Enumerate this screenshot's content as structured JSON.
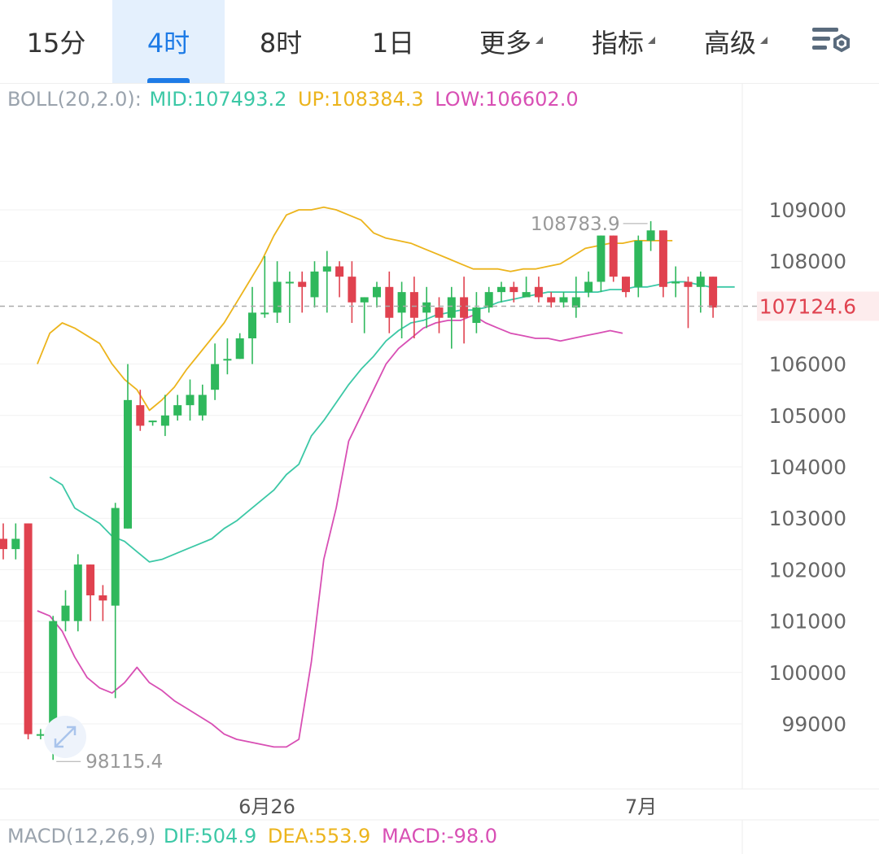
{
  "tabs": [
    {
      "label": "15分",
      "active": false,
      "dropdown": false
    },
    {
      "label": "4时",
      "active": true,
      "dropdown": false
    },
    {
      "label": "8时",
      "active": false,
      "dropdown": false
    },
    {
      "label": "1日",
      "active": false,
      "dropdown": false
    },
    {
      "label": "更多",
      "active": false,
      "dropdown": true
    },
    {
      "label": "指标",
      "active": false,
      "dropdown": true
    },
    {
      "label": "高级",
      "active": false,
      "dropdown": true
    }
  ],
  "settings_icon": "chart-settings-icon",
  "boll_legend": {
    "name": "BOLL(20,2.0):",
    "mid": "MID:107493.2",
    "up": "UP:108384.3",
    "low": "LOW:106602.0"
  },
  "macd_legend": {
    "name": "MACD(12,26,9)",
    "dif": "DIF:504.9",
    "dea": "DEA:553.9",
    "macd": "MACD:-98.0"
  },
  "colors": {
    "up": "#2fb85c",
    "down": "#e0424f",
    "mid": "#3cc8a6",
    "upper": "#ecb41c",
    "lower": "#d84fb4",
    "accent": "#1e7be6"
  },
  "chart_data": {
    "type": "candlestick",
    "y_ticks": [
      109000,
      108000,
      106000,
      105000,
      104000,
      103000,
      102000,
      101000,
      100000,
      99000
    ],
    "y_tick_labels": [
      "109000",
      "108000",
      "106000",
      "105000",
      "104000",
      "103000",
      "102000",
      "101000",
      "100000",
      "99000"
    ],
    "x_labels": [
      {
        "label": "6月26",
        "index": 20
      },
      {
        "label": "7月",
        "index": 52
      }
    ],
    "last_price": 107124.6,
    "last_price_label": "107124.6",
    "max_label": "108783.9",
    "min_label": "98115.4",
    "candles": [
      [
        102600,
        102400,
        102900,
        102200
      ],
      [
        102400,
        102600,
        102900,
        102200
      ],
      [
        102900,
        98800,
        102900,
        98700
      ],
      [
        98800,
        98800,
        98900,
        98700
      ],
      [
        98900,
        101000,
        101100,
        98300
      ],
      [
        101000,
        101300,
        101600,
        100800
      ],
      [
        101000,
        102100,
        102300,
        100800
      ],
      [
        102100,
        101500,
        102100,
        101000
      ],
      [
        101500,
        101400,
        101700,
        101000
      ],
      [
        101300,
        103200,
        103300,
        99500
      ],
      [
        102800,
        105300,
        106000,
        102800
      ],
      [
        105200,
        104800,
        105500,
        104700
      ],
      [
        104900,
        104900,
        104900,
        104800
      ],
      [
        104800,
        105000,
        105400,
        104600
      ],
      [
        105000,
        105200,
        105400,
        104900
      ],
      [
        105200,
        105400,
        105700,
        104900
      ],
      [
        105000,
        105400,
        105600,
        104900
      ],
      [
        105500,
        106000,
        106400,
        105300
      ],
      [
        106100,
        106100,
        106500,
        105800
      ],
      [
        106100,
        106500,
        106600,
        106100
      ],
      [
        106500,
        107000,
        107500,
        106000
      ],
      [
        107000,
        107000,
        108100,
        106900
      ],
      [
        107000,
        107600,
        108000,
        106800
      ],
      [
        107600,
        107600,
        107800,
        106800
      ],
      [
        107600,
        107500,
        107800,
        107000
      ],
      [
        107300,
        107800,
        108000,
        107100
      ],
      [
        107800,
        107900,
        108200,
        107000
      ],
      [
        107900,
        107700,
        108000,
        107300
      ],
      [
        107700,
        107200,
        108000,
        106800
      ],
      [
        107200,
        107300,
        107300,
        106600
      ],
      [
        107300,
        107500,
        107600,
        107100
      ],
      [
        107500,
        106900,
        107800,
        106600
      ],
      [
        107000,
        107400,
        107600,
        106500
      ],
      [
        107400,
        106900,
        107700,
        106500
      ],
      [
        107000,
        107200,
        107500,
        106700
      ],
      [
        107100,
        106900,
        107300,
        106600
      ],
      [
        106900,
        107300,
        107500,
        106300
      ],
      [
        107300,
        106900,
        107700,
        106400
      ],
      [
        106800,
        107100,
        107400,
        106600
      ],
      [
        107100,
        107400,
        107500,
        107000
      ],
      [
        107400,
        107500,
        107600,
        107200
      ],
      [
        107500,
        107400,
        107600,
        107200
      ],
      [
        107300,
        107400,
        107700,
        107300
      ],
      [
        107500,
        107300,
        107700,
        107200
      ],
      [
        107300,
        107200,
        107400,
        107100
      ],
      [
        107200,
        107300,
        107400,
        107100
      ],
      [
        107100,
        107300,
        107700,
        106900
      ],
      [
        107400,
        107600,
        107800,
        107300
      ],
      [
        107600,
        108500,
        108500,
        107400
      ],
      [
        108500,
        107700,
        108500,
        107600
      ],
      [
        107700,
        107400,
        107700,
        107300
      ],
      [
        107500,
        108400,
        108500,
        107300
      ],
      [
        108400,
        108600,
        108780,
        108200
      ],
      [
        108600,
        107500,
        108600,
        107300
      ],
      [
        107600,
        107600,
        107900,
        107300
      ],
      [
        107600,
        107500,
        107700,
        106700
      ],
      [
        107500,
        107700,
        107800,
        107000
      ],
      [
        107700,
        107100,
        107700,
        106900
      ]
    ],
    "boll_mid": [
      103800,
      103650,
      103200,
      103050,
      102900,
      102650,
      102550,
      102350,
      102150,
      102200,
      102300,
      102400,
      102500,
      102600,
      102800,
      102950,
      103150,
      103350,
      103550,
      103850,
      104050,
      104600,
      104900,
      105250,
      105600,
      105900,
      106150,
      106450,
      106650,
      106800,
      106850,
      106950,
      107000,
      107050,
      107050,
      107100,
      107200,
      107250,
      107300,
      107350,
      107400,
      107400,
      107400,
      107400,
      107400,
      107450,
      107450,
      107500,
      107500,
      107550,
      107600,
      107600,
      107550,
      107500,
      107500,
      107500
    ],
    "boll_upper": [
      106000,
      106600,
      106800,
      106700,
      106550,
      106400,
      106000,
      105700,
      105500,
      105100,
      105300,
      105550,
      105900,
      106200,
      106500,
      106800,
      107200,
      107600,
      108000,
      108500,
      108900,
      109000,
      109000,
      109050,
      109000,
      108900,
      108800,
      108550,
      108450,
      108400,
      108350,
      108250,
      108150,
      108050,
      107950,
      107850,
      107850,
      107850,
      107800,
      107850,
      107850,
      107900,
      107950,
      108100,
      108250,
      108300,
      108350,
      108350,
      108400,
      108400,
      108400,
      108400
    ],
    "boll_lower": [
      101200,
      101100,
      100800,
      100300,
      99900,
      99700,
      99600,
      99800,
      100100,
      99800,
      99650,
      99450,
      99300,
      99150,
      99000,
      98800,
      98700,
      98650,
      98600,
      98550,
      98550,
      98700,
      100200,
      102200,
      103200,
      104500,
      105000,
      105500,
      106000,
      106300,
      106500,
      106700,
      106800,
      106850,
      106850,
      106950,
      106800,
      106700,
      106600,
      106550,
      106500,
      106500,
      106450,
      106500,
      106550,
      106600,
      106650,
      106600
    ],
    "boll_period_start_index": {
      "mid": 4,
      "upper": 3,
      "lower": 3
    }
  }
}
